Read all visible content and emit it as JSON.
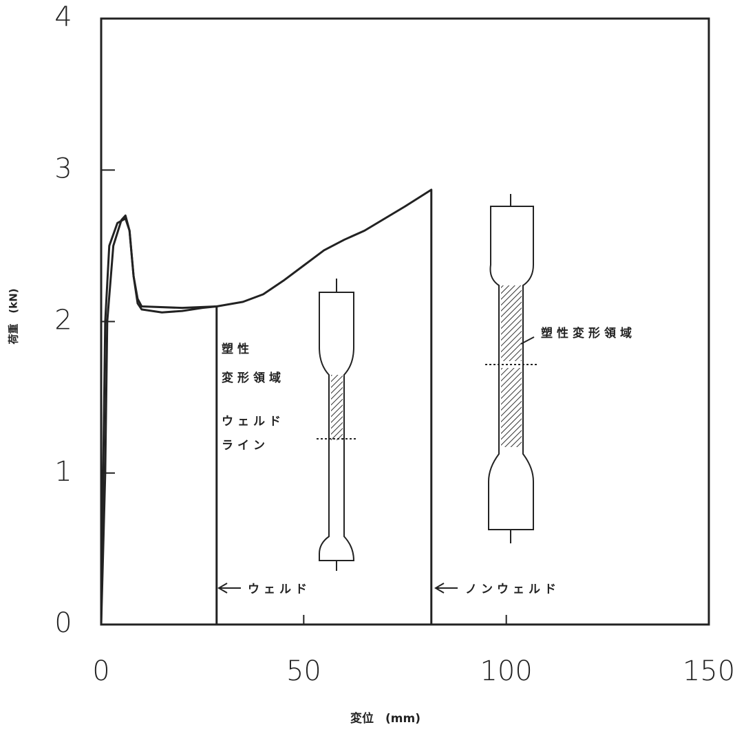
{
  "chart_data": {
    "type": "line",
    "xlabel": "変位　(mm)",
    "ylabel": "荷重　(kN)",
    "xlim": [
      0,
      150
    ],
    "xticks": [
      0,
      50,
      100,
      150
    ],
    "ylim": [
      0,
      4
    ],
    "yticks": [
      0,
      1,
      2,
      3,
      4
    ],
    "series": [
      {
        "name": "ウェルド",
        "color": "#222222",
        "x": [
          0,
          0.5,
          1,
          2,
          4,
          6,
          7,
          8,
          9,
          10,
          15,
          20,
          25,
          28.5,
          28.5
        ],
        "values": [
          0,
          1,
          2,
          2.5,
          2.65,
          2.68,
          2.6,
          2.3,
          2.12,
          2.08,
          2.06,
          2.07,
          2.09,
          2.1,
          0
        ]
      },
      {
        "name": "ノンウェルド",
        "color": "#222222",
        "x": [
          0,
          1,
          1.5,
          3,
          5,
          6,
          7,
          8,
          9,
          10,
          20,
          28.5,
          35,
          40,
          45,
          50,
          55,
          60,
          65,
          70,
          75,
          81.5,
          81.5
        ],
        "values": [
          0,
          1,
          2,
          2.5,
          2.67,
          2.7,
          2.6,
          2.3,
          2.15,
          2.1,
          2.09,
          2.1,
          2.13,
          2.18,
          2.27,
          2.37,
          2.47,
          2.54,
          2.6,
          2.68,
          2.76,
          2.87,
          0
        ]
      }
    ],
    "annotations": [
      "塑性",
      "変形領域",
      "ウェルド",
      "ライン",
      "塑性変形領域"
    ]
  }
}
